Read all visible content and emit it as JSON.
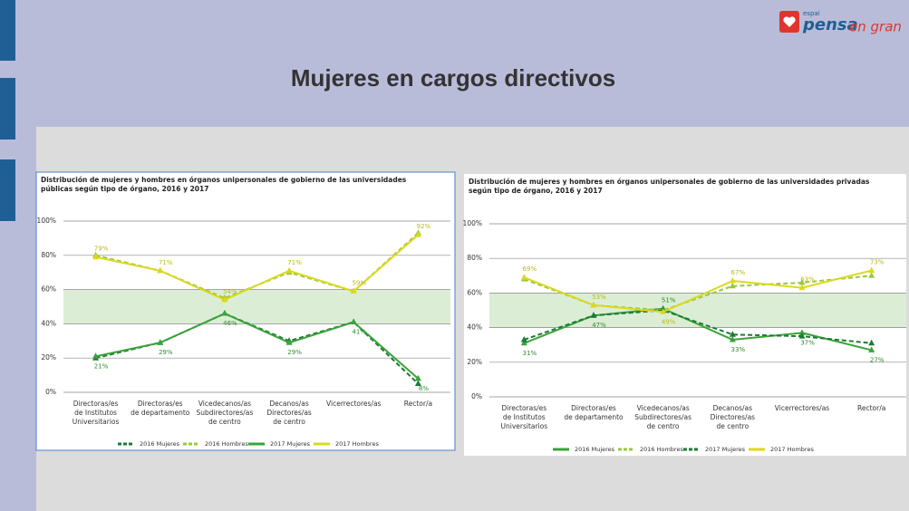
{
  "header": {
    "title": "Mujeres en cargos directivos",
    "logo_small": "espai",
    "logo_main": "pensa",
    "logo_tail": "en gran"
  },
  "chart_data": [
    {
      "type": "line",
      "title": "Distribución de mujeres y hombres en órganos unipersonales de gobierno de las universidades públicas según tipo de órgano, 2016 y 2017",
      "categories": [
        "Directoras/es\nde Institutos\nUniversitarios",
        "Directoras/es\nde departamento",
        "Vicedecanos/as\nSubdirectores/as\nde centro",
        "Decanos/as\nDirectores/as\nde centro",
        "Vicerrectores/as",
        "Rector/a"
      ],
      "ylim": [
        0,
        100
      ],
      "yticks": [
        {
          "value": 0,
          "label": "0%"
        },
        {
          "value": 20,
          "label": "20%"
        },
        {
          "value": 40,
          "label": "40%"
        },
        {
          "value": 60,
          "label": "60%"
        },
        {
          "value": 80,
          "label": "80%"
        },
        {
          "value": 100,
          "label": "100%"
        }
      ],
      "grid": true,
      "highlight_range": [
        40,
        60
      ],
      "highlight_color": "#dbeed5",
      "legend": "bottom",
      "series": [
        {
          "name": "2016 Mujeres",
          "color": "#1d7a36",
          "line_style": "dashed",
          "values": [
            20,
            29,
            46,
            30,
            41,
            5
          ]
        },
        {
          "name": "2016 Hombres",
          "color": "#9bc83c",
          "line_style": "dashed",
          "values": [
            80,
            71,
            55,
            70,
            59,
            93
          ]
        },
        {
          "name": "2017 Mujeres",
          "color": "#3ba33a",
          "line_style": "solid",
          "values": [
            21,
            29,
            46,
            29,
            41,
            8
          ],
          "value_labels": [
            "21%",
            "29%",
            "46%",
            "29%",
            "41%",
            "8%"
          ]
        },
        {
          "name": "2017 Hombres",
          "color": "#dcd81e",
          "line_style": "solid",
          "values": [
            79,
            71,
            54,
            71,
            59,
            92
          ],
          "value_labels": [
            "79%",
            "71%",
            "54%",
            "71%",
            "59%",
            "92%"
          ]
        }
      ]
    },
    {
      "type": "line",
      "title": "Distribución de mujeres y hombres en órganos unipersonales de gobierno de las universidades privadas según tipo de órgano, 2016 y 2017",
      "categories": [
        "Directoras/es\nde Institutos\nUniversitarios",
        "Directoras/es\nde departamento",
        "Vicedecanos/as\nSubdirectores/as\nde centro",
        "Decanos/as\nDirectores/as\nde centro",
        "Vicerrectores/as",
        "Rector/a"
      ],
      "ylim": [
        0,
        100
      ],
      "yticks": [
        {
          "value": 0,
          "label": "0%"
        },
        {
          "value": 20,
          "label": "20%"
        },
        {
          "value": 40,
          "label": "40%"
        },
        {
          "value": 60,
          "label": "60%"
        },
        {
          "value": 80,
          "label": "80%"
        },
        {
          "value": 100,
          "label": "100%"
        }
      ],
      "grid": true,
      "highlight_range": [
        40,
        60
      ],
      "highlight_color": "#dbeed5",
      "legend": "bottom",
      "series": [
        {
          "name": "2016 Mujeres",
          "color": "#3ba33a",
          "line_style": "solid",
          "values": [
            31,
            47,
            51,
            33,
            37,
            27
          ],
          "value_labels": [
            "31%",
            "47%",
            "51%",
            "33%",
            "37%",
            "27%"
          ]
        },
        {
          "name": "2016 Hombres",
          "color": "#9bc83c",
          "line_style": "dashed",
          "values": [
            68,
            53,
            50,
            64,
            66,
            70
          ]
        },
        {
          "name": "2017 Mujeres",
          "color": "#1d7a36",
          "line_style": "dashed",
          "values": [
            33,
            47,
            50,
            36,
            35,
            31
          ]
        },
        {
          "name": "2017 Hombres",
          "color": "#dcd81e",
          "line_style": "solid",
          "values": [
            69,
            53,
            49,
            67,
            63,
            73
          ],
          "value_labels": [
            "69%",
            "53%",
            "49%",
            "67%",
            "63%",
            "73%"
          ]
        }
      ]
    }
  ]
}
